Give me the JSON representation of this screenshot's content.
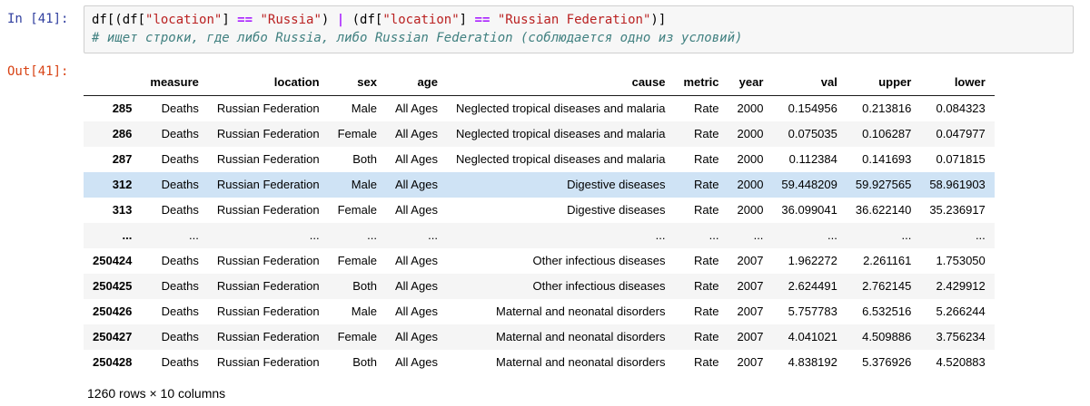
{
  "notebook": {
    "in_prompt": "In [41]:",
    "out_prompt": "Out[41]:",
    "code": {
      "line1_tokens": [
        {
          "t": "df[(df[",
          "c": "plain"
        },
        {
          "t": "\"location\"",
          "c": "string"
        },
        {
          "t": "] ",
          "c": "plain"
        },
        {
          "t": "==",
          "c": "op"
        },
        {
          "t": " ",
          "c": "plain"
        },
        {
          "t": "\"Russia\"",
          "c": "string"
        },
        {
          "t": ") ",
          "c": "plain"
        },
        {
          "t": "|",
          "c": "op"
        },
        {
          "t": " (df[",
          "c": "plain"
        },
        {
          "t": "\"location\"",
          "c": "string"
        },
        {
          "t": "] ",
          "c": "plain"
        },
        {
          "t": "==",
          "c": "op"
        },
        {
          "t": " ",
          "c": "plain"
        },
        {
          "t": "\"Russian Federation\"",
          "c": "string"
        },
        {
          "t": ")]",
          "c": "plain"
        }
      ],
      "comment": "# ищет строки, где либо Russia, либо Russian Federation (соблюдается одно из условий)"
    }
  },
  "table": {
    "columns": [
      "",
      "measure",
      "location",
      "sex",
      "age",
      "cause",
      "metric",
      "year",
      "val",
      "upper",
      "lower"
    ],
    "rows": [
      {
        "index": "285",
        "highlight": false,
        "cells": [
          "Deaths",
          "Russian Federation",
          "Male",
          "All Ages",
          "Neglected tropical diseases and malaria",
          "Rate",
          "2000",
          "0.154956",
          "0.213816",
          "0.084323"
        ]
      },
      {
        "index": "286",
        "highlight": false,
        "cells": [
          "Deaths",
          "Russian Federation",
          "Female",
          "All Ages",
          "Neglected tropical diseases and malaria",
          "Rate",
          "2000",
          "0.075035",
          "0.106287",
          "0.047977"
        ]
      },
      {
        "index": "287",
        "highlight": false,
        "cells": [
          "Deaths",
          "Russian Federation",
          "Both",
          "All Ages",
          "Neglected tropical diseases and malaria",
          "Rate",
          "2000",
          "0.112384",
          "0.141693",
          "0.071815"
        ]
      },
      {
        "index": "312",
        "highlight": true,
        "cells": [
          "Deaths",
          "Russian Federation",
          "Male",
          "All Ages",
          "Digestive diseases",
          "Rate",
          "2000",
          "59.448209",
          "59.927565",
          "58.961903"
        ]
      },
      {
        "index": "313",
        "highlight": false,
        "cells": [
          "Deaths",
          "Russian Federation",
          "Female",
          "All Ages",
          "Digestive diseases",
          "Rate",
          "2000",
          "36.099041",
          "36.622140",
          "35.236917"
        ]
      },
      {
        "index": "...",
        "highlight": false,
        "cells": [
          "...",
          "...",
          "...",
          "...",
          "...",
          "...",
          "...",
          "...",
          "...",
          "..."
        ]
      },
      {
        "index": "250424",
        "highlight": false,
        "cells": [
          "Deaths",
          "Russian Federation",
          "Female",
          "All Ages",
          "Other infectious diseases",
          "Rate",
          "2007",
          "1.962272",
          "2.261161",
          "1.753050"
        ]
      },
      {
        "index": "250425",
        "highlight": false,
        "cells": [
          "Deaths",
          "Russian Federation",
          "Both",
          "All Ages",
          "Other infectious diseases",
          "Rate",
          "2007",
          "2.624491",
          "2.762145",
          "2.429912"
        ]
      },
      {
        "index": "250426",
        "highlight": false,
        "cells": [
          "Deaths",
          "Russian Federation",
          "Male",
          "All Ages",
          "Maternal and neonatal disorders",
          "Rate",
          "2007",
          "5.757783",
          "6.532516",
          "5.266244"
        ]
      },
      {
        "index": "250427",
        "highlight": false,
        "cells": [
          "Deaths",
          "Russian Federation",
          "Female",
          "All Ages",
          "Maternal and neonatal disorders",
          "Rate",
          "2007",
          "4.041021",
          "4.509886",
          "3.756234"
        ]
      },
      {
        "index": "250428",
        "highlight": false,
        "cells": [
          "Deaths",
          "Russian Federation",
          "Both",
          "All Ages",
          "Maternal and neonatal disorders",
          "Rate",
          "2007",
          "4.838192",
          "5.376926",
          "4.520883"
        ]
      }
    ],
    "footer": "1260 rows × 10 columns"
  },
  "colors": {
    "in_prompt": "#303F9F",
    "out_prompt": "#D84315",
    "code_string": "#BA2121",
    "code_operator": "#AA22FF",
    "code_comment": "#408080",
    "row_stripe": "#F5F5F5",
    "row_highlight": "#CFE3F5",
    "input_bg": "#F7F7F7",
    "input_border": "#CFCFCF",
    "header_border": "#1A1A1A"
  }
}
